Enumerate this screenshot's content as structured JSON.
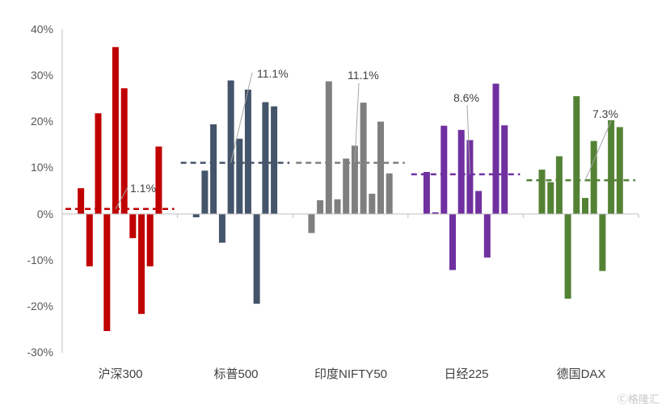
{
  "chart_data": {
    "type": "bar",
    "ylim": [
      -30,
      40
    ],
    "y_ticks": [
      "40%",
      "30%",
      "20%",
      "10%",
      "0%",
      "-10%",
      "-20%",
      "-30%"
    ],
    "y_tick_values": [
      40,
      30,
      20,
      10,
      0,
      -10,
      -20,
      -30
    ],
    "categories": [
      "沪深300",
      "标普500",
      "印度NIFTY50",
      "日经225",
      "德国DAX"
    ],
    "groups": [
      {
        "name": "沪深300",
        "color": "#c00000",
        "values": [
          5.6,
          -11.3,
          21.8,
          -25.3,
          36.1,
          27.2,
          -5.2,
          -21.6,
          -11.3,
          14.6
        ],
        "average": 1.1,
        "label": "1.1%"
      },
      {
        "name": "标普500",
        "color": "#44546a",
        "values": [
          -0.7,
          9.4,
          19.4,
          -6.2,
          28.9,
          16.3,
          26.9,
          -19.4,
          24.2,
          23.3
        ],
        "average": 11.1,
        "label": "11.1%"
      },
      {
        "name": "印度NIFTY50",
        "color": "#7f7f7f",
        "values": [
          -4.1,
          3.0,
          28.7,
          3.2,
          12.0,
          14.8,
          24.1,
          4.4,
          20.0,
          8.8
        ],
        "average": 11.1,
        "label": "11.1%"
      },
      {
        "name": "日经225",
        "color": "#7030a0",
        "values": [
          9.1,
          0.4,
          19.1,
          -12.1,
          18.2,
          16.0,
          5.0,
          -9.4,
          28.2,
          19.2
        ],
        "average": 8.6,
        "label": "8.6%"
      },
      {
        "name": "德国DAX",
        "color": "#548235",
        "values": [
          9.6,
          6.9,
          12.5,
          -18.3,
          25.5,
          3.5,
          15.8,
          -12.3,
          20.3,
          18.8
        ],
        "average": 7.3,
        "label": "7.3%"
      }
    ]
  },
  "watermark": "格隆汇"
}
